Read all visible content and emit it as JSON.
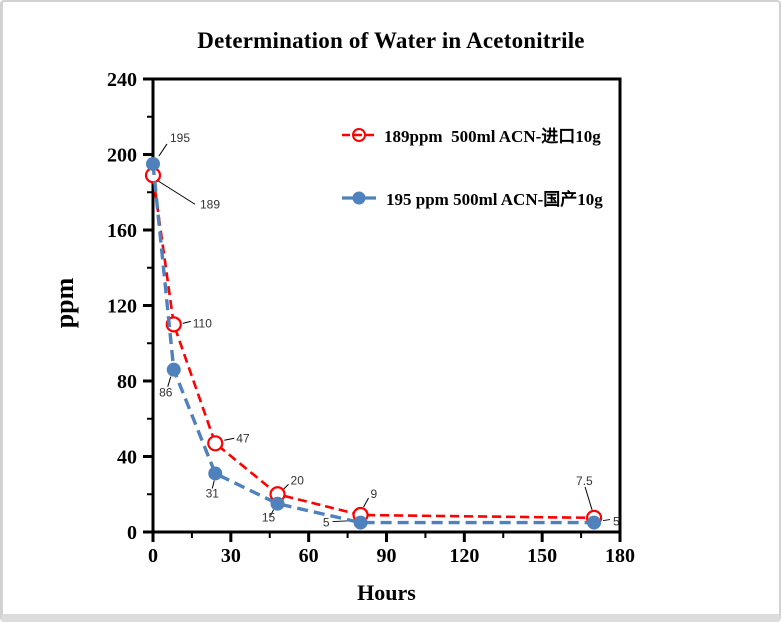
{
  "chart_data": {
    "type": "line",
    "title": "Determination of Water in Acetonitrile",
    "xlabel": "Hours",
    "ylabel": "ppm",
    "xlim": [
      0,
      180
    ],
    "ylim": [
      0,
      240
    ],
    "x_major_ticks": [
      0,
      30,
      60,
      90,
      120,
      150,
      180
    ],
    "x_minor_tick_step": 15,
    "y_major_ticks": [
      0,
      40,
      80,
      120,
      160,
      200,
      240
    ],
    "y_minor_tick_step": 20,
    "grid": false,
    "legend_position": "inside-upper-right",
    "frame_color": "#000000",
    "data_label_color": "#333333",
    "series": [
      {
        "name": "189ppm  500ml ACN-进口10g",
        "color": "#ff0000",
        "marker": "open-circle",
        "line_style": "dashed",
        "x": [
          0,
          8,
          24,
          48,
          80,
          170
        ],
        "values": [
          189,
          110,
          47,
          20,
          9,
          7.5
        ],
        "point_labels": [
          "189",
          "110",
          "47",
          "20",
          "9",
          "7.5"
        ]
      },
      {
        "name": "195 ppm 500ml ACN-国产10g",
        "color": "#4f81bd",
        "marker": "filled-circle",
        "line_style": "dashed",
        "x": [
          0,
          8,
          24,
          48,
          80,
          170
        ],
        "values": [
          195,
          86,
          31,
          15,
          5,
          5
        ],
        "point_labels": [
          "195",
          "86",
          "31",
          "15",
          "5",
          "5"
        ]
      }
    ]
  }
}
